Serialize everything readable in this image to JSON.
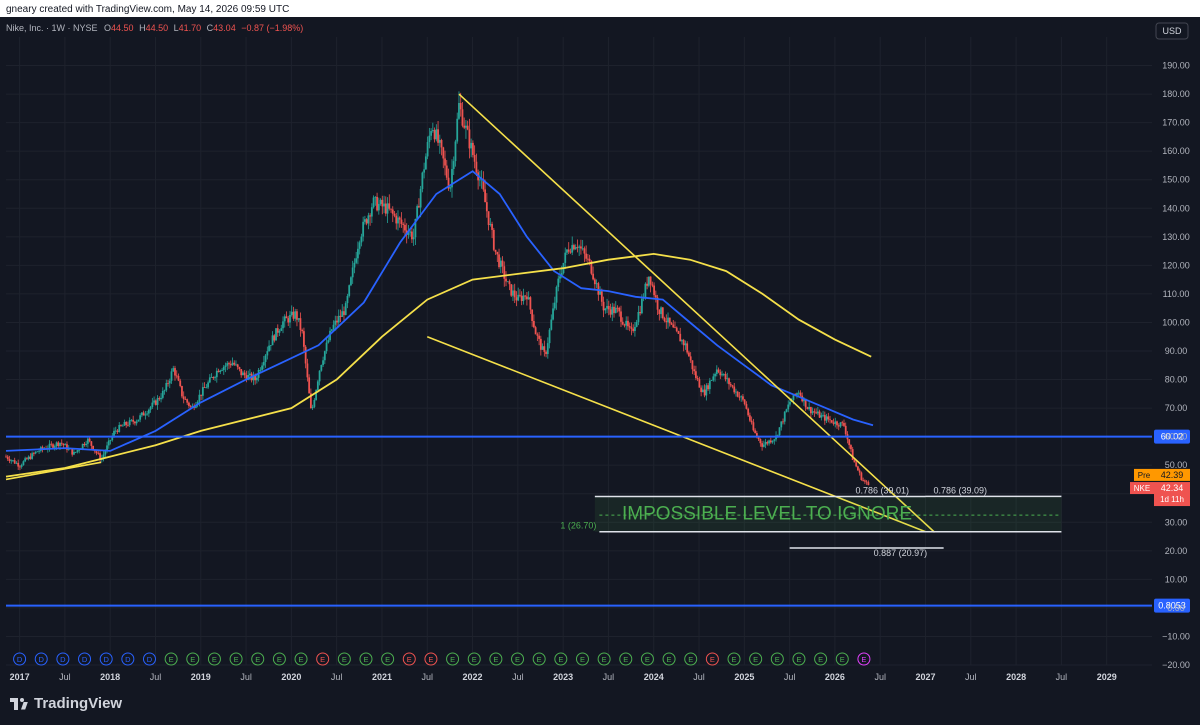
{
  "header": {
    "credit": "gneary created with TradingView.com, May 14, 2026 09:59 UTC"
  },
  "legend": {
    "symbol": "Nike, Inc. · 1W · NYSE",
    "o_label": "O",
    "o": "44.50",
    "h_label": "H",
    "h": "44.50",
    "l_label": "L",
    "l": "41.70",
    "c_label": "C",
    "c": "43.04",
    "change": "−0.87 (−1.98%)"
  },
  "currency": "USD",
  "footer": {
    "brand": "TradingView"
  },
  "colors": {
    "bg": "#131722",
    "up": "#26a69a",
    "down": "#ef5350",
    "ma_fast": "#2962ff",
    "ma_slow": "#f5e04a",
    "trend": "#f5e04a",
    "hline": "#2962ff",
    "annotation": "#4caf50",
    "grid": "#1e222d",
    "axis_text": "#b2b5be"
  },
  "chart_data": {
    "type": "candlestick",
    "title": "Nike, Inc. · 1W · NYSE",
    "ylim": [
      -20,
      200
    ],
    "xlim": [
      2016.85,
      2029.5
    ],
    "y_ticks": [
      "190.00",
      "180.00",
      "170.00",
      "160.00",
      "150.00",
      "140.00",
      "130.00",
      "120.00",
      "110.00",
      "100.00",
      "90.00",
      "80.00",
      "70.00",
      "60.00",
      "50.00",
      "40.00",
      "30.00",
      "20.00",
      "10.00",
      "0.00",
      "−10.00",
      "−20.00"
    ],
    "x_ticks": [
      {
        "label": "2017",
        "t": 2017.0,
        "bold": true
      },
      {
        "label": "Jul",
        "t": 2017.5
      },
      {
        "label": "2018",
        "t": 2018.0,
        "bold": true
      },
      {
        "label": "Jul",
        "t": 2018.5
      },
      {
        "label": "2019",
        "t": 2019.0,
        "bold": true
      },
      {
        "label": "Jul",
        "t": 2019.5
      },
      {
        "label": "2020",
        "t": 2020.0,
        "bold": true
      },
      {
        "label": "Jul",
        "t": 2020.5
      },
      {
        "label": "2021",
        "t": 2021.0,
        "bold": true
      },
      {
        "label": "Jul",
        "t": 2021.5
      },
      {
        "label": "2022",
        "t": 2022.0,
        "bold": true
      },
      {
        "label": "Jul",
        "t": 2022.5
      },
      {
        "label": "2023",
        "t": 2023.0,
        "bold": true
      },
      {
        "label": "Jul",
        "t": 2023.5
      },
      {
        "label": "2024",
        "t": 2024.0,
        "bold": true
      },
      {
        "label": "Jul",
        "t": 2024.5
      },
      {
        "label": "2025",
        "t": 2025.0,
        "bold": true
      },
      {
        "label": "Jul",
        "t": 2025.5
      },
      {
        "label": "2026",
        "t": 2026.0,
        "bold": true
      },
      {
        "label": "Jul",
        "t": 2026.5
      },
      {
        "label": "2027",
        "t": 2027.0,
        "bold": true
      },
      {
        "label": "Jul",
        "t": 2027.5
      },
      {
        "label": "2028",
        "t": 2028.0,
        "bold": true
      },
      {
        "label": "Jul",
        "t": 2028.5
      },
      {
        "label": "2029",
        "t": 2029.0,
        "bold": true
      }
    ],
    "price_path": [
      [
        2016.85,
        53
      ],
      [
        2017.0,
        50
      ],
      [
        2017.2,
        55
      ],
      [
        2017.45,
        58
      ],
      [
        2017.6,
        54
      ],
      [
        2017.75,
        59
      ],
      [
        2017.9,
        52
      ],
      [
        2018.05,
        62
      ],
      [
        2018.15,
        64
      ],
      [
        2018.3,
        66
      ],
      [
        2018.5,
        72
      ],
      [
        2018.6,
        76
      ],
      [
        2018.7,
        84
      ],
      [
        2018.8,
        74
      ],
      [
        2018.9,
        70
      ],
      [
        2019.0,
        75
      ],
      [
        2019.2,
        84
      ],
      [
        2019.35,
        86
      ],
      [
        2019.45,
        82
      ],
      [
        2019.6,
        80
      ],
      [
        2019.75,
        92
      ],
      [
        2019.9,
        100
      ],
      [
        2020.05,
        103
      ],
      [
        2020.12,
        96
      ],
      [
        2020.22,
        68
      ],
      [
        2020.32,
        85
      ],
      [
        2020.45,
        98
      ],
      [
        2020.6,
        105
      ],
      [
        2020.75,
        130
      ],
      [
        2020.9,
        142
      ],
      [
        2021.05,
        140
      ],
      [
        2021.2,
        135
      ],
      [
        2021.35,
        130
      ],
      [
        2021.45,
        152
      ],
      [
        2021.55,
        170
      ],
      [
        2021.65,
        160
      ],
      [
        2021.75,
        147
      ],
      [
        2021.85,
        176
      ],
      [
        2021.95,
        165
      ],
      [
        2022.1,
        148
      ],
      [
        2022.25,
        125
      ],
      [
        2022.4,
        112
      ],
      [
        2022.5,
        108
      ],
      [
        2022.6,
        110
      ],
      [
        2022.7,
        96
      ],
      [
        2022.8,
        88
      ],
      [
        2022.95,
        115
      ],
      [
        2023.05,
        126
      ],
      [
        2023.15,
        128
      ],
      [
        2023.3,
        120
      ],
      [
        2023.45,
        105
      ],
      [
        2023.6,
        104
      ],
      [
        2023.75,
        96
      ],
      [
        2023.85,
        105
      ],
      [
        2023.95,
        117
      ],
      [
        2024.05,
        105
      ],
      [
        2024.2,
        98
      ],
      [
        2024.35,
        92
      ],
      [
        2024.45,
        82
      ],
      [
        2024.55,
        75
      ],
      [
        2024.7,
        84
      ],
      [
        2024.85,
        78
      ],
      [
        2025.0,
        72
      ],
      [
        2025.1,
        62
      ],
      [
        2025.2,
        57
      ],
      [
        2025.35,
        60
      ],
      [
        2025.5,
        72
      ],
      [
        2025.6,
        76
      ],
      [
        2025.7,
        70
      ],
      [
        2025.85,
        67
      ],
      [
        2026.0,
        65
      ],
      [
        2026.1,
        64
      ],
      [
        2026.2,
        52
      ],
      [
        2026.3,
        45
      ],
      [
        2026.37,
        43.04
      ]
    ],
    "series": [
      {
        "name": "MA fast",
        "kind": "ma",
        "points": [
          [
            2016.85,
            55
          ],
          [
            2017.5,
            56
          ],
          [
            2018.0,
            55
          ],
          [
            2018.5,
            62
          ],
          [
            2019.0,
            72
          ],
          [
            2019.5,
            80
          ],
          [
            2019.9,
            86
          ],
          [
            2020.3,
            92
          ],
          [
            2020.8,
            107
          ],
          [
            2021.2,
            128
          ],
          [
            2021.6,
            145
          ],
          [
            2022.0,
            153
          ],
          [
            2022.3,
            145
          ],
          [
            2022.6,
            130
          ],
          [
            2022.9,
            118
          ],
          [
            2023.2,
            112
          ],
          [
            2023.5,
            111
          ],
          [
            2023.8,
            109
          ],
          [
            2024.1,
            108
          ],
          [
            2024.4,
            100
          ],
          [
            2024.7,
            92
          ],
          [
            2025.0,
            85
          ],
          [
            2025.3,
            78
          ],
          [
            2025.6,
            74
          ],
          [
            2025.9,
            70
          ],
          [
            2026.2,
            66
          ],
          [
            2026.42,
            64
          ]
        ]
      },
      {
        "name": "MA slow",
        "kind": "ma",
        "points": [
          [
            2016.85,
            46
          ],
          [
            2017.5,
            49
          ],
          [
            2018.0,
            53
          ],
          [
            2018.5,
            57
          ],
          [
            2019.0,
            62
          ],
          [
            2019.5,
            66
          ],
          [
            2020.0,
            70
          ],
          [
            2020.5,
            80
          ],
          [
            2021.0,
            95
          ],
          [
            2021.5,
            108
          ],
          [
            2022.0,
            115
          ],
          [
            2022.5,
            117
          ],
          [
            2023.0,
            119
          ],
          [
            2023.5,
            122
          ],
          [
            2024.0,
            124
          ],
          [
            2024.4,
            122
          ],
          [
            2024.8,
            118
          ],
          [
            2025.2,
            110
          ],
          [
            2025.6,
            101
          ],
          [
            2026.0,
            94
          ],
          [
            2026.4,
            88
          ]
        ]
      }
    ],
    "trendlines": [
      {
        "name": "upper",
        "from": [
          2021.85,
          180
        ],
        "to": [
          2027.1,
          26.5
        ]
      },
      {
        "name": "lower",
        "from": [
          2021.5,
          95
        ],
        "to": [
          2027.0,
          26.7
        ]
      },
      {
        "name": "base",
        "from": [
          2016.85,
          45
        ],
        "to": [
          2017.9,
          51
        ]
      }
    ],
    "hlines": [
      {
        "value": 60.02,
        "label": "60.02"
      },
      {
        "value": 0.8053,
        "label": "0.8053"
      }
    ],
    "fib_levels": [
      {
        "value": 39.01,
        "from": 2023.35,
        "to": 2027.0,
        "label": "0.786 (39.01)"
      },
      {
        "value": 39.09,
        "from": 2027.0,
        "to": 2028.5,
        "label": "0.786 (39.09)"
      },
      {
        "value": 26.7,
        "from": 2023.4,
        "to": 2028.5,
        "label": "1 (26.70)"
      },
      {
        "value": 32.5,
        "from": 2023.4,
        "to": 2028.5,
        "label": ""
      },
      {
        "value": 20.97,
        "from": 2025.5,
        "to": 2027.2,
        "label": "0.887 (20.97)"
      }
    ],
    "annotation": {
      "text": "IMPOSSIBLE LEVEL TO IGNORE",
      "t": 2023.65,
      "value": 33.5
    },
    "price_tags": [
      {
        "label": "Pre",
        "value": "42.39"
      },
      {
        "label": "NKE",
        "value": "42.34",
        "sub": "1d 11h"
      }
    ],
    "events": [
      "D",
      "D",
      "D",
      "D",
      "D",
      "D",
      "D",
      "E",
      "E",
      "E",
      "E",
      "E",
      "E",
      "E",
      "E",
      "E",
      "E",
      "E",
      "E",
      "E",
      "E",
      "E",
      "E",
      "E",
      "E",
      "E",
      "E",
      "E",
      "E",
      "E",
      "E",
      "E",
      "E",
      "E",
      "E",
      "E",
      "E",
      "E",
      "E",
      "E"
    ],
    "grid": true
  }
}
